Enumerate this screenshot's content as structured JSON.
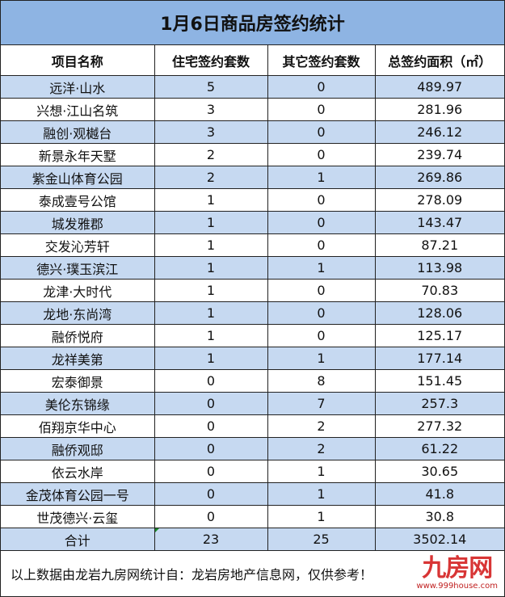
{
  "title": "1月6日商品房签约统计",
  "headers": [
    "项目名称",
    "住宅签约套数",
    "其它签约套数",
    "总签约面积（㎡）"
  ],
  "rows": [
    [
      "远洋·山水",
      "5",
      "0",
      "489.97"
    ],
    [
      "兴想·江山名筑",
      "3",
      "0",
      "281.96"
    ],
    [
      "融创·观樾台",
      "3",
      "0",
      "246.12"
    ],
    [
      "新景永年天墅",
      "2",
      "0",
      "239.74"
    ],
    [
      "紫金山体育公园",
      "2",
      "1",
      "269.86"
    ],
    [
      "泰成壹号公馆",
      "1",
      "0",
      "278.09"
    ],
    [
      "城发雅郡",
      "1",
      "0",
      "143.47"
    ],
    [
      "交发沁芳轩",
      "1",
      "0",
      "87.21"
    ],
    [
      "德兴·璞玉滨江",
      "1",
      "1",
      "113.98"
    ],
    [
      "龙津·大时代",
      "1",
      "0",
      "70.83"
    ],
    [
      "龙地·东尚湾",
      "1",
      "0",
      "128.06"
    ],
    [
      "融侨悦府",
      "1",
      "0",
      "125.17"
    ],
    [
      "龙祥美第",
      "1",
      "1",
      "177.14"
    ],
    [
      "宏泰御景",
      "0",
      "8",
      "151.45"
    ],
    [
      "美伦东锦缘",
      "0",
      "7",
      "257.3"
    ],
    [
      "佰翔京华中心",
      "0",
      "2",
      "277.32"
    ],
    [
      "融侨观邸",
      "0",
      "2",
      "61.22"
    ],
    [
      "依云水岸",
      "0",
      "1",
      "30.65"
    ],
    [
      "金茂体育公园一号",
      "0",
      "1",
      "41.8"
    ],
    [
      "世茂德兴·云玺",
      "0",
      "1",
      "30.8"
    ]
  ],
  "total": [
    "合计",
    "23",
    "25",
    "3502.14"
  ],
  "footer": "以上数据由龙岩九房网统计自：龙岩房地产信息网，仅供参考！",
  "watermark": {
    "logo": "九房网",
    "url": "www.999house.com"
  },
  "colors": {
    "title_bg": "#8eb4e3",
    "stripe": "#c6d9f1",
    "logo": "#d42020"
  }
}
